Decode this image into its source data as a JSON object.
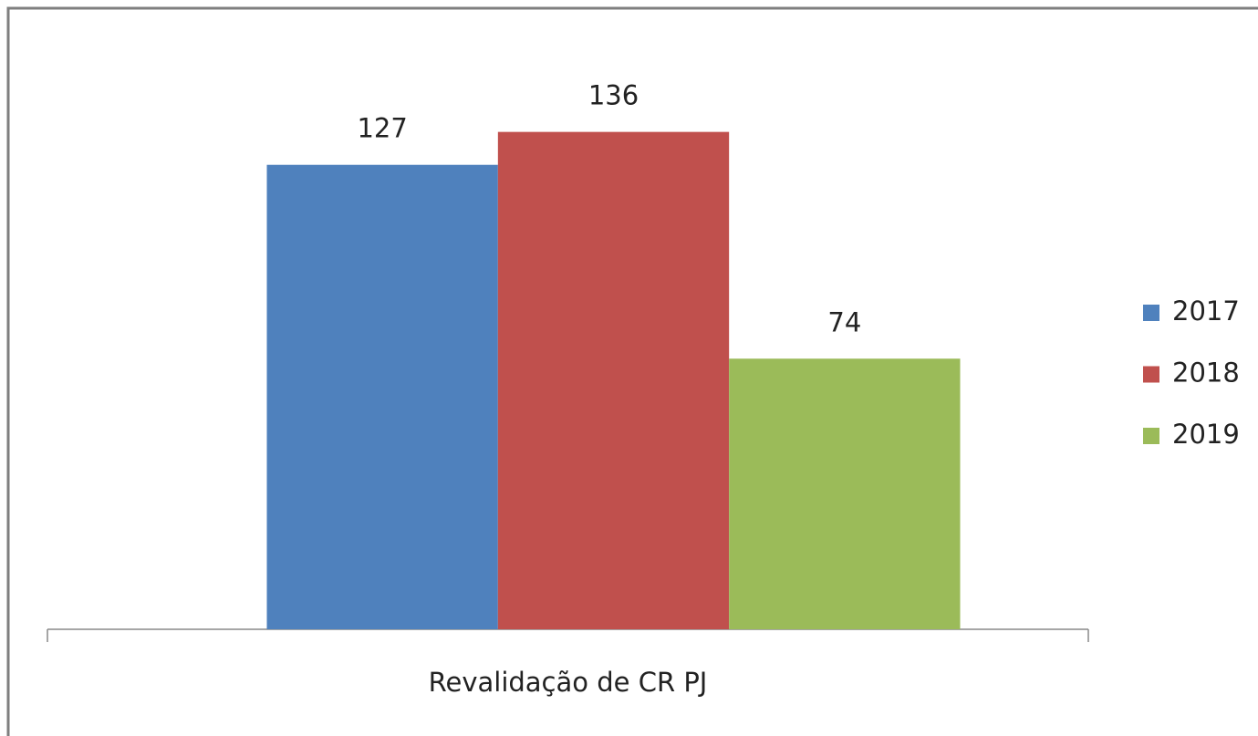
{
  "chart_data": {
    "type": "bar",
    "categories": [
      "Revalidação de CR PJ"
    ],
    "series": [
      {
        "name": "2017",
        "color": "#4f81bd",
        "values": [
          127
        ]
      },
      {
        "name": "2018",
        "color": "#c0504d",
        "values": [
          136
        ]
      },
      {
        "name": "2019",
        "color": "#9bbb59",
        "values": [
          74
        ]
      }
    ],
    "legend": "right"
  }
}
